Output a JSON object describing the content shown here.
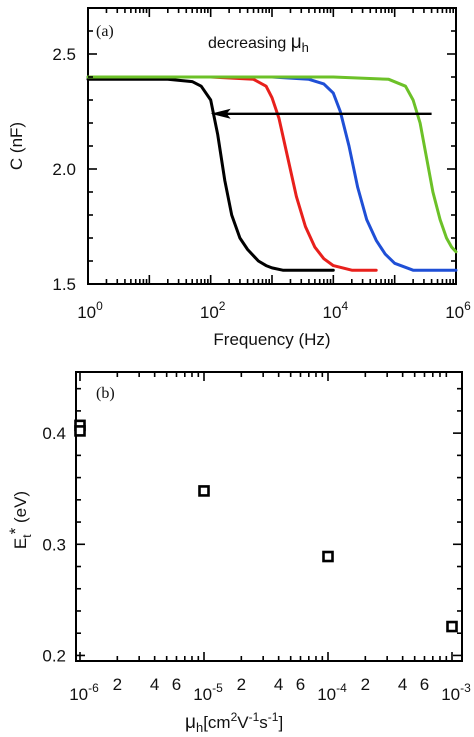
{
  "chart_data": [
    {
      "panel": "(a)",
      "type": "line",
      "xlabel": "Frequency (Hz)",
      "ylabel": "C (nF)",
      "xscale": "log",
      "xlim": [
        1,
        1000000
      ],
      "ylim": [
        1.5,
        2.7
      ],
      "xticks": [
        {
          "value": 1,
          "base": "10",
          "exp": "0"
        },
        {
          "value": 100,
          "base": "10",
          "exp": "2"
        },
        {
          "value": 10000,
          "base": "10",
          "exp": "4"
        },
        {
          "value": 1000000,
          "base": "10",
          "exp": "6"
        }
      ],
      "yticks": [
        {
          "value": 1.5,
          "label": "1.5"
        },
        {
          "value": 2.0,
          "label": "2.0"
        },
        {
          "value": 2.5,
          "label": "2.5"
        }
      ],
      "annotation": {
        "text": "decreasing ",
        "symbol": "μ",
        "subscript": "h"
      },
      "arrow": {
        "x_from": 400000,
        "x_to": 100,
        "y": 2.24,
        "direction": "left"
      },
      "grid": false,
      "legend": "none",
      "series": [
        {
          "color": "#000000",
          "x": [
            1,
            20,
            50,
            70,
            100,
            130,
            170,
            220,
            300,
            400,
            600,
            800,
            1000,
            1500,
            3000,
            10000
          ],
          "y": [
            2.39,
            2.39,
            2.38,
            2.36,
            2.3,
            2.15,
            1.95,
            1.8,
            1.7,
            1.65,
            1.6,
            1.58,
            1.57,
            1.56,
            1.56,
            1.56
          ]
        },
        {
          "color": "#e8201c",
          "x": [
            1,
            100,
            500,
            800,
            1000,
            1300,
            1800,
            2500,
            3500,
            5000,
            7000,
            10000,
            20000,
            50000
          ],
          "y": [
            2.4,
            2.4,
            2.39,
            2.36,
            2.31,
            2.22,
            2.05,
            1.88,
            1.75,
            1.66,
            1.61,
            1.58,
            1.56,
            1.56
          ]
        },
        {
          "color": "#1f4fd6",
          "x": [
            1,
            1000,
            4000,
            7000,
            10000,
            13000,
            18000,
            25000,
            35000,
            50000,
            70000,
            100000,
            200000,
            1000000
          ],
          "y": [
            2.4,
            2.4,
            2.39,
            2.37,
            2.33,
            2.25,
            2.1,
            1.92,
            1.78,
            1.69,
            1.63,
            1.59,
            1.56,
            1.56
          ]
        },
        {
          "color": "#6cc128",
          "x": [
            1,
            10000,
            80000,
            150000,
            200000,
            260000,
            330000,
            420000,
            550000,
            700000,
            850000,
            1000000
          ],
          "y": [
            2.4,
            2.4,
            2.39,
            2.36,
            2.3,
            2.2,
            2.05,
            1.9,
            1.78,
            1.7,
            1.66,
            1.64
          ]
        }
      ]
    },
    {
      "panel": "(b)",
      "type": "scatter",
      "xlabel_symbol": "μ",
      "xlabel_subscript": "h",
      "xlabel_rest": "[cm",
      "xlabel_parts": [
        "[cm",
        "2",
        "V",
        "-1",
        "s",
        "-1",
        "]"
      ],
      "ylabel_main": "E",
      "ylabel_sub": "t",
      "ylabel_sup": "*",
      "ylabel_rest": " (eV)",
      "xscale": "log",
      "xlim": [
        1e-06,
        0.001
      ],
      "ylim": [
        0.195,
        0.455
      ],
      "xticks": [
        {
          "value": 1e-06,
          "base": "10",
          "exp": "-6"
        },
        {
          "value": 1e-05,
          "base": "10",
          "exp": "-5"
        },
        {
          "value": 0.0001,
          "base": "10",
          "exp": "-4"
        },
        {
          "value": 0.001,
          "base": "10",
          "exp": "-3"
        }
      ],
      "minor_labels": [
        "2",
        "4",
        "6"
      ],
      "yticks": [
        {
          "value": 0.2,
          "label": "0.2"
        },
        {
          "value": 0.3,
          "label": "0.3"
        },
        {
          "value": 0.4,
          "label": "0.4"
        }
      ],
      "grid": false,
      "legend": "none",
      "points": [
        {
          "x": 1e-06,
          "y": 0.407
        },
        {
          "x": 1e-06,
          "y": 0.402
        },
        {
          "x": 1e-05,
          "y": 0.348
        },
        {
          "x": 0.0001,
          "y": 0.289
        },
        {
          "x": 0.001,
          "y": 0.226
        }
      ]
    }
  ]
}
